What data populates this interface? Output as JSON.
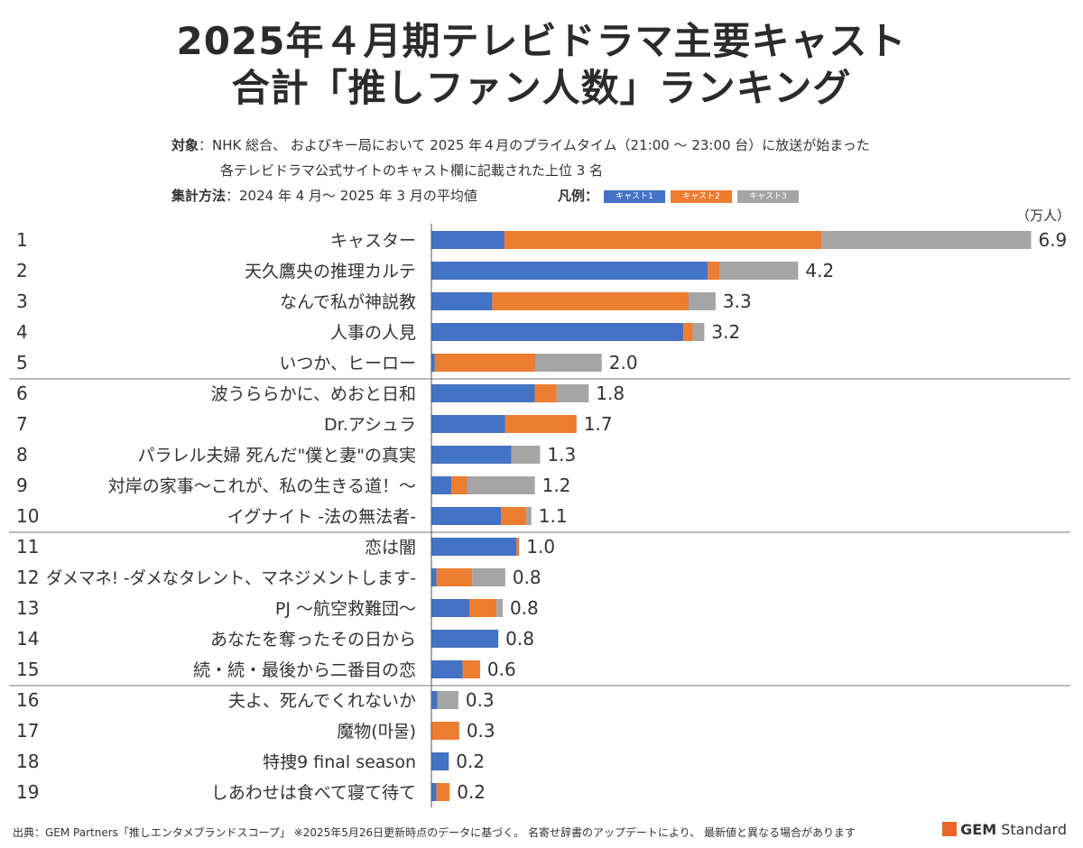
{
  "title_line1": "2025年４月期テレビドラマ主要キャスト",
  "title_line2": "合計「推しファン人数」ランキング",
  "target_label": "対象",
  "target_line1": "：NHK 総合、 およびキー局において 2025 年４月のプライムタイム（21:00 ～ 23:00 台）に放送が始まった",
  "target_line2": "各テレビドラマ公式サイトのキャスト欄に記載された上位 3 名",
  "method_label": "集計方法",
  "method_text": "：2024 年 4 月～ 2025 年 3 月の平均値",
  "legend_label": "凡例：",
  "footer": "出典：GEM Partners「推しエンタメブランドスコープ」 ※2025年5月26日更新時点のデータに基づく。 名寄せ辞書のアップデートにより、 最新値と異なる場合があります",
  "brand_gem": "GEM",
  "brand_standard": " Standard",
  "colors": {
    "cast1": "#4472c4",
    "cast2": "#ed7d31",
    "cast3": "#a5a5a5"
  },
  "chart_data": {
    "type": "bar",
    "orientation": "horizontal",
    "stacked": true,
    "unit": "（万人）",
    "ranks": [
      "1",
      "2",
      "3",
      "4",
      "5",
      "6",
      "7",
      "8",
      "9",
      "10",
      "11",
      "12",
      "13",
      "14",
      "15",
      "16",
      "17",
      "18",
      "19"
    ],
    "categories": [
      "キャスター",
      "天久鷹央の推理カルテ",
      "なんで私が神説教",
      "人事の人見",
      "いつか、ヒーロー",
      "波うららかに、めおと日和",
      "Dr.アシュラ",
      "パラレル夫婦 死んだ\"僕と妻\"の真実",
      "対岸の家事～これが、私の生きる道！～",
      "イグナイト -法の無法者-",
      "恋は闇",
      "ダメマネ! -ダメなタレント、マネジメントします-",
      "PJ ～航空救難団～",
      "あなたを奪ったその日から",
      "続・続・最後から二番目の恋",
      "夫よ、死んでくれないか",
      "魔物(마물)",
      "特捜9 final season",
      "しあわせは食べて寝て待て"
    ],
    "totals": [
      "6.9",
      "4.2",
      "3.3",
      "3.2",
      "2.0",
      "1.8",
      "1.7",
      "1.3",
      "1.2",
      "1.1",
      "1.0",
      "0.8",
      "0.8",
      "0.8",
      "0.6",
      "0.3",
      "0.3",
      "0.2",
      "0.2"
    ],
    "series": [
      {
        "name": "キャスト1",
        "color": "#4472c4",
        "values": [
          0.84,
          3.18,
          0.7,
          2.9,
          0.04,
          1.19,
          0.85,
          0.92,
          0.23,
          0.8,
          0.98,
          0.06,
          0.44,
          0.77,
          0.36,
          0.07,
          0.0,
          0.2,
          0.06
        ]
      },
      {
        "name": "キャスト2",
        "color": "#ed7d31",
        "values": [
          3.65,
          0.14,
          2.26,
          0.11,
          1.16,
          0.25,
          0.82,
          0.0,
          0.18,
          0.29,
          0.03,
          0.41,
          0.31,
          0.0,
          0.2,
          0.0,
          0.32,
          0.0,
          0.15
        ]
      },
      {
        "name": "キャスト3",
        "color": "#a5a5a5",
        "values": [
          2.41,
          0.9,
          0.31,
          0.13,
          0.76,
          0.37,
          0.0,
          0.33,
          0.78,
          0.06,
          0.0,
          0.38,
          0.07,
          0.0,
          0.0,
          0.24,
          0.0,
          0.0,
          0.0
        ]
      }
    ],
    "xlim": [
      0,
      7
    ],
    "group_separators_after_rank": [
      5,
      10,
      15
    ],
    "grid": false
  }
}
